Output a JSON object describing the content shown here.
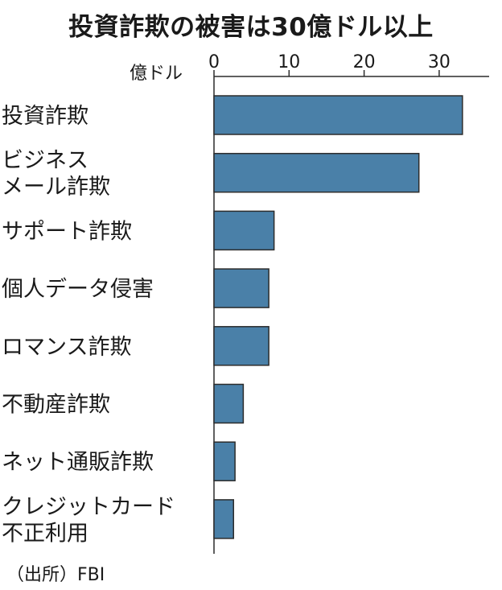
{
  "title": "投資詐欺の被害は30億ドル以上",
  "source": "（出所）FBI",
  "chart_data": {
    "type": "bar",
    "orientation": "horizontal",
    "title": "投資詐欺の被害は30億ドル以上",
    "unit": "億ドル",
    "xlim": [
      0,
      37
    ],
    "ticks": [
      0,
      10,
      20,
      30
    ],
    "categories": [
      [
        "投資詐欺"
      ],
      [
        "ビジネス",
        "メール詐欺"
      ],
      [
        "サポート詐欺"
      ],
      [
        "個人データ侵害"
      ],
      [
        "ロマンス詐欺"
      ],
      [
        "不動産詐欺"
      ],
      [
        "ネット通販詐欺"
      ],
      [
        "クレジットカード",
        "不正利用"
      ]
    ],
    "values": [
      33.1,
      27.3,
      8.0,
      7.3,
      7.3,
      3.9,
      2.8,
      2.6
    ],
    "bar_color": "#4a80a8"
  }
}
